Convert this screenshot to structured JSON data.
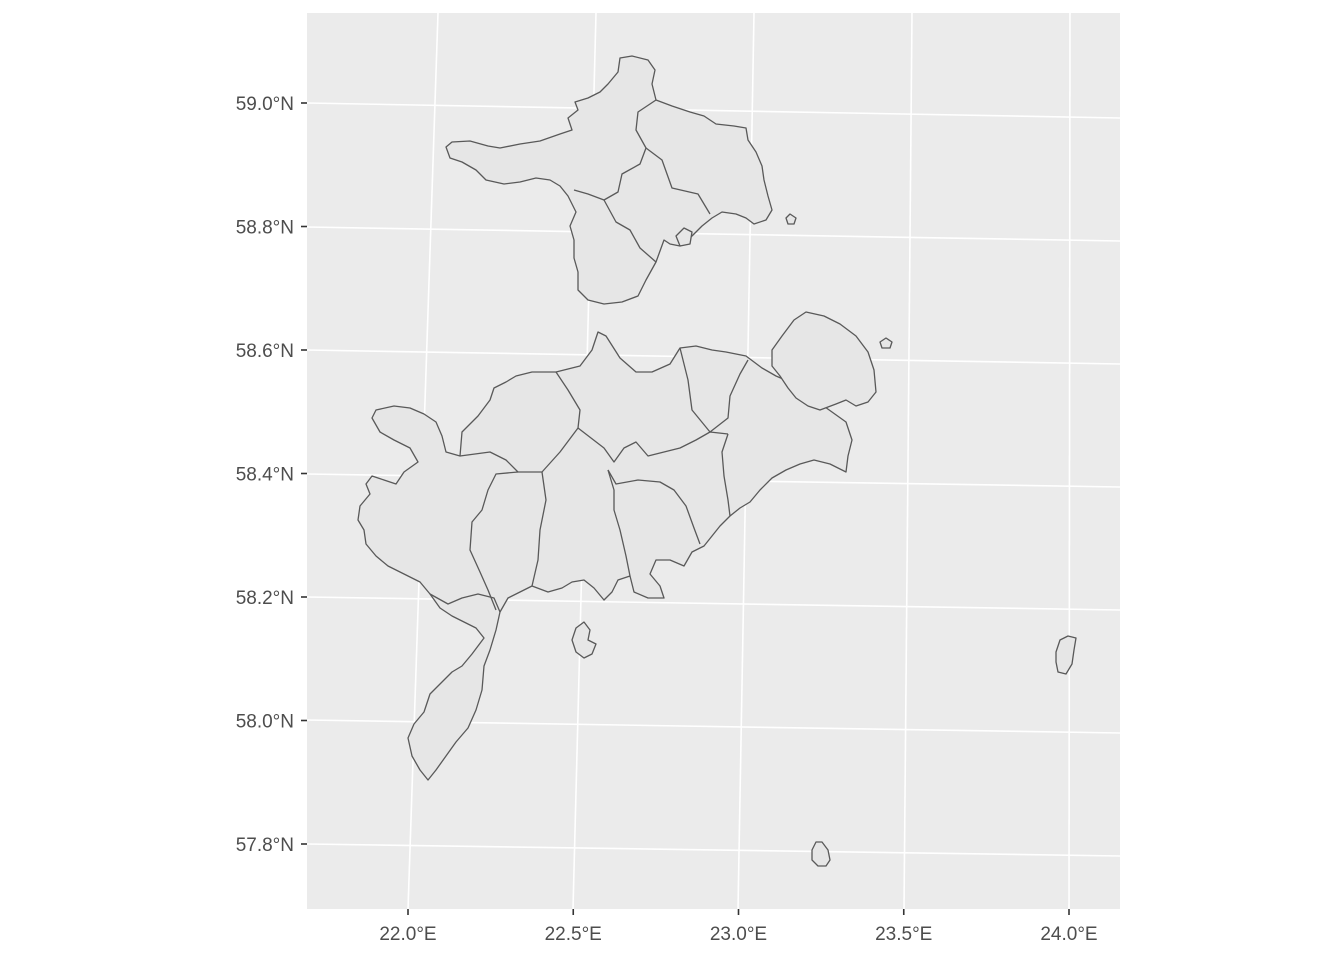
{
  "colors": {
    "panel_background": "#ebebeb",
    "grid": "#ffffff",
    "land_fill": "#e6e6e6",
    "border": "#595959",
    "tick_text": "#4d4d4d"
  },
  "axes": {
    "x_ticks": [
      {
        "value": 22.0,
        "label": "22.0°E"
      },
      {
        "value": 22.5,
        "label": "22.5°E"
      },
      {
        "value": 23.0,
        "label": "23.0°E"
      },
      {
        "value": 23.5,
        "label": "23.5°E"
      },
      {
        "value": 24.0,
        "label": "24.0°E"
      }
    ],
    "y_ticks": [
      {
        "value": 59.0,
        "label": "59.0°N"
      },
      {
        "value": 58.8,
        "label": "58.8°N"
      },
      {
        "value": 58.6,
        "label": "58.6°N"
      },
      {
        "value": 58.4,
        "label": "58.4°N"
      },
      {
        "value": 58.2,
        "label": "58.2°N"
      },
      {
        "value": 58.0,
        "label": "58.0°N"
      },
      {
        "value": 57.8,
        "label": "57.8°N"
      }
    ]
  }
}
